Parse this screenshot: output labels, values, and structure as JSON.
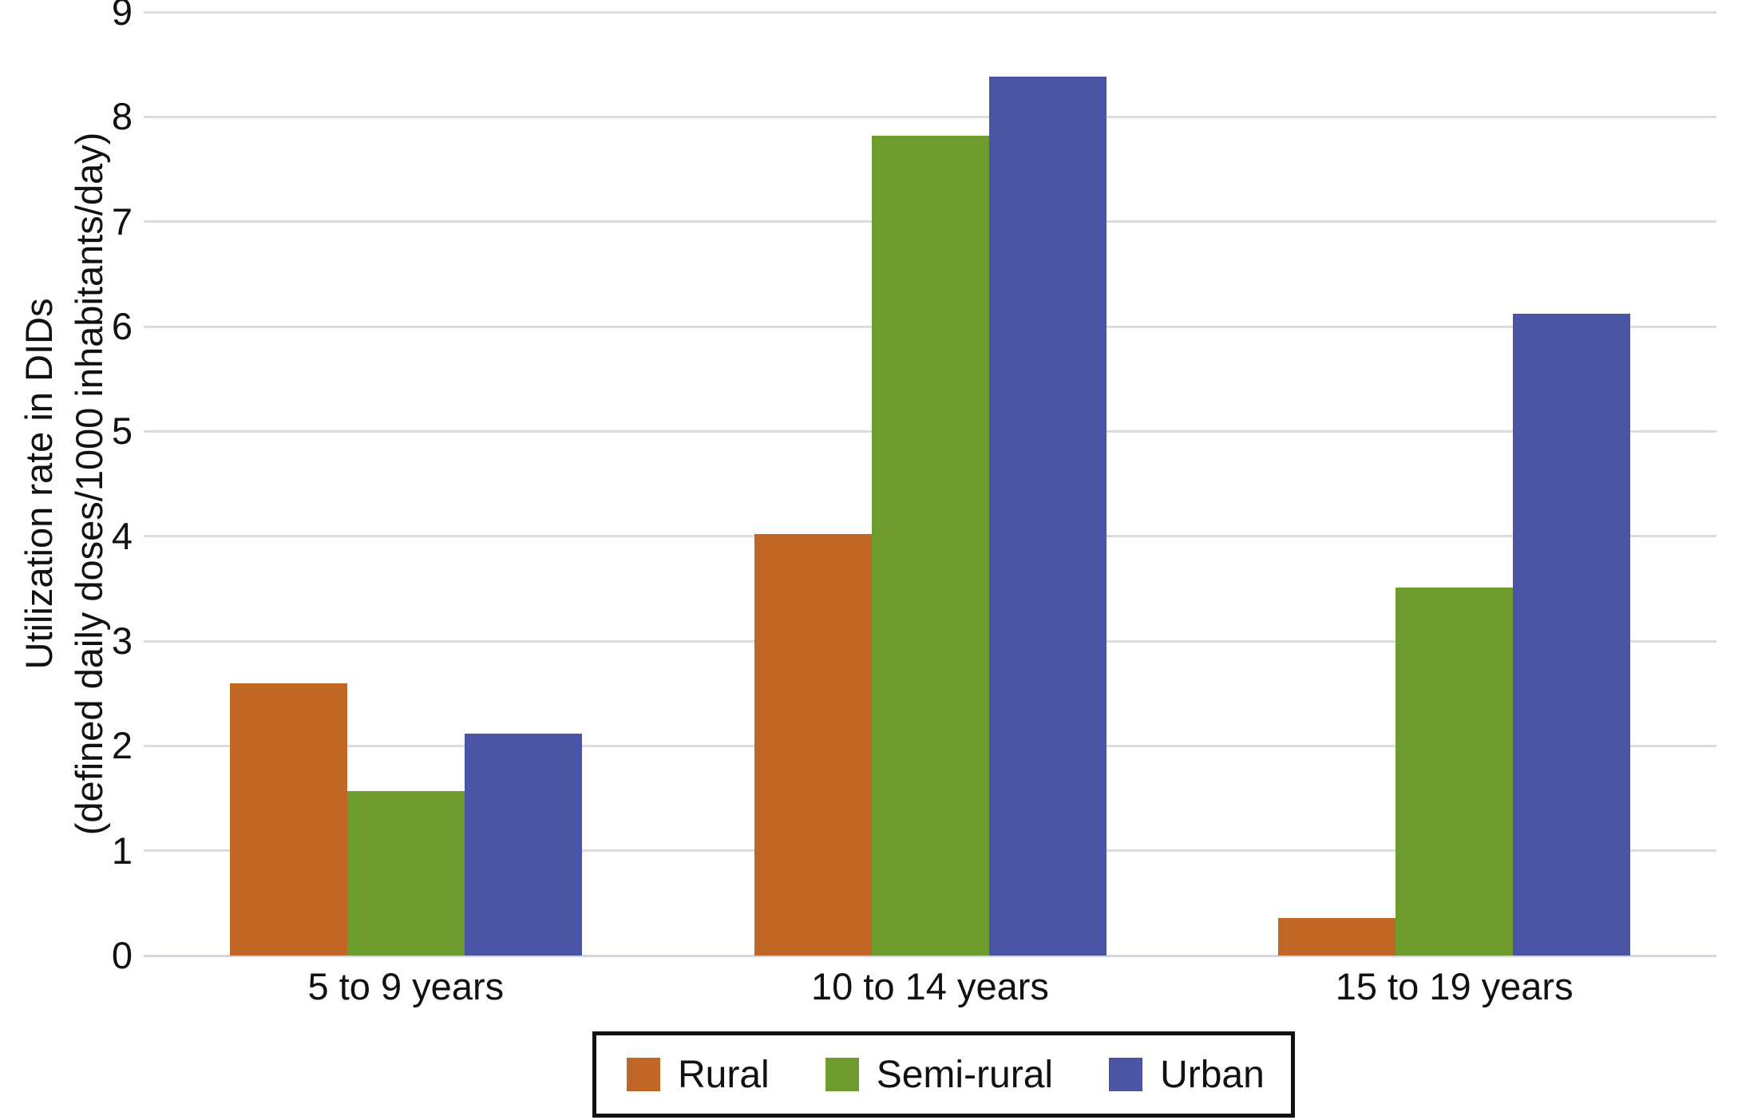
{
  "chart_data": {
    "type": "bar",
    "title": "",
    "categories": [
      "5 to 9 years",
      "10 to 14 years",
      "15 to 19 years"
    ],
    "series": [
      {
        "name": "Rural",
        "color": "#c16726",
        "values": [
          2.6,
          4.02,
          0.36
        ]
      },
      {
        "name": "Semi-rural",
        "color": "#6e9b2e",
        "values": [
          1.57,
          7.82,
          3.51
        ]
      },
      {
        "name": "Urban",
        "color": "#4a56a5",
        "values": [
          2.12,
          8.38,
          6.12
        ]
      }
    ],
    "ylabel": "Utilization rate in DIDs\n(defined daily doses/1000 inhabitants/day)",
    "xlabel": "",
    "ylim": [
      0,
      9
    ],
    "yticks": [
      "0",
      "1",
      "2",
      "3",
      "4",
      "5",
      "6",
      "7",
      "8",
      "9"
    ],
    "grid": "horizontal",
    "gridline_color": "#dcdcdc",
    "legend_position": "bottom-center",
    "legend_border_color": "#111111",
    "background_color": "#ffffff"
  }
}
